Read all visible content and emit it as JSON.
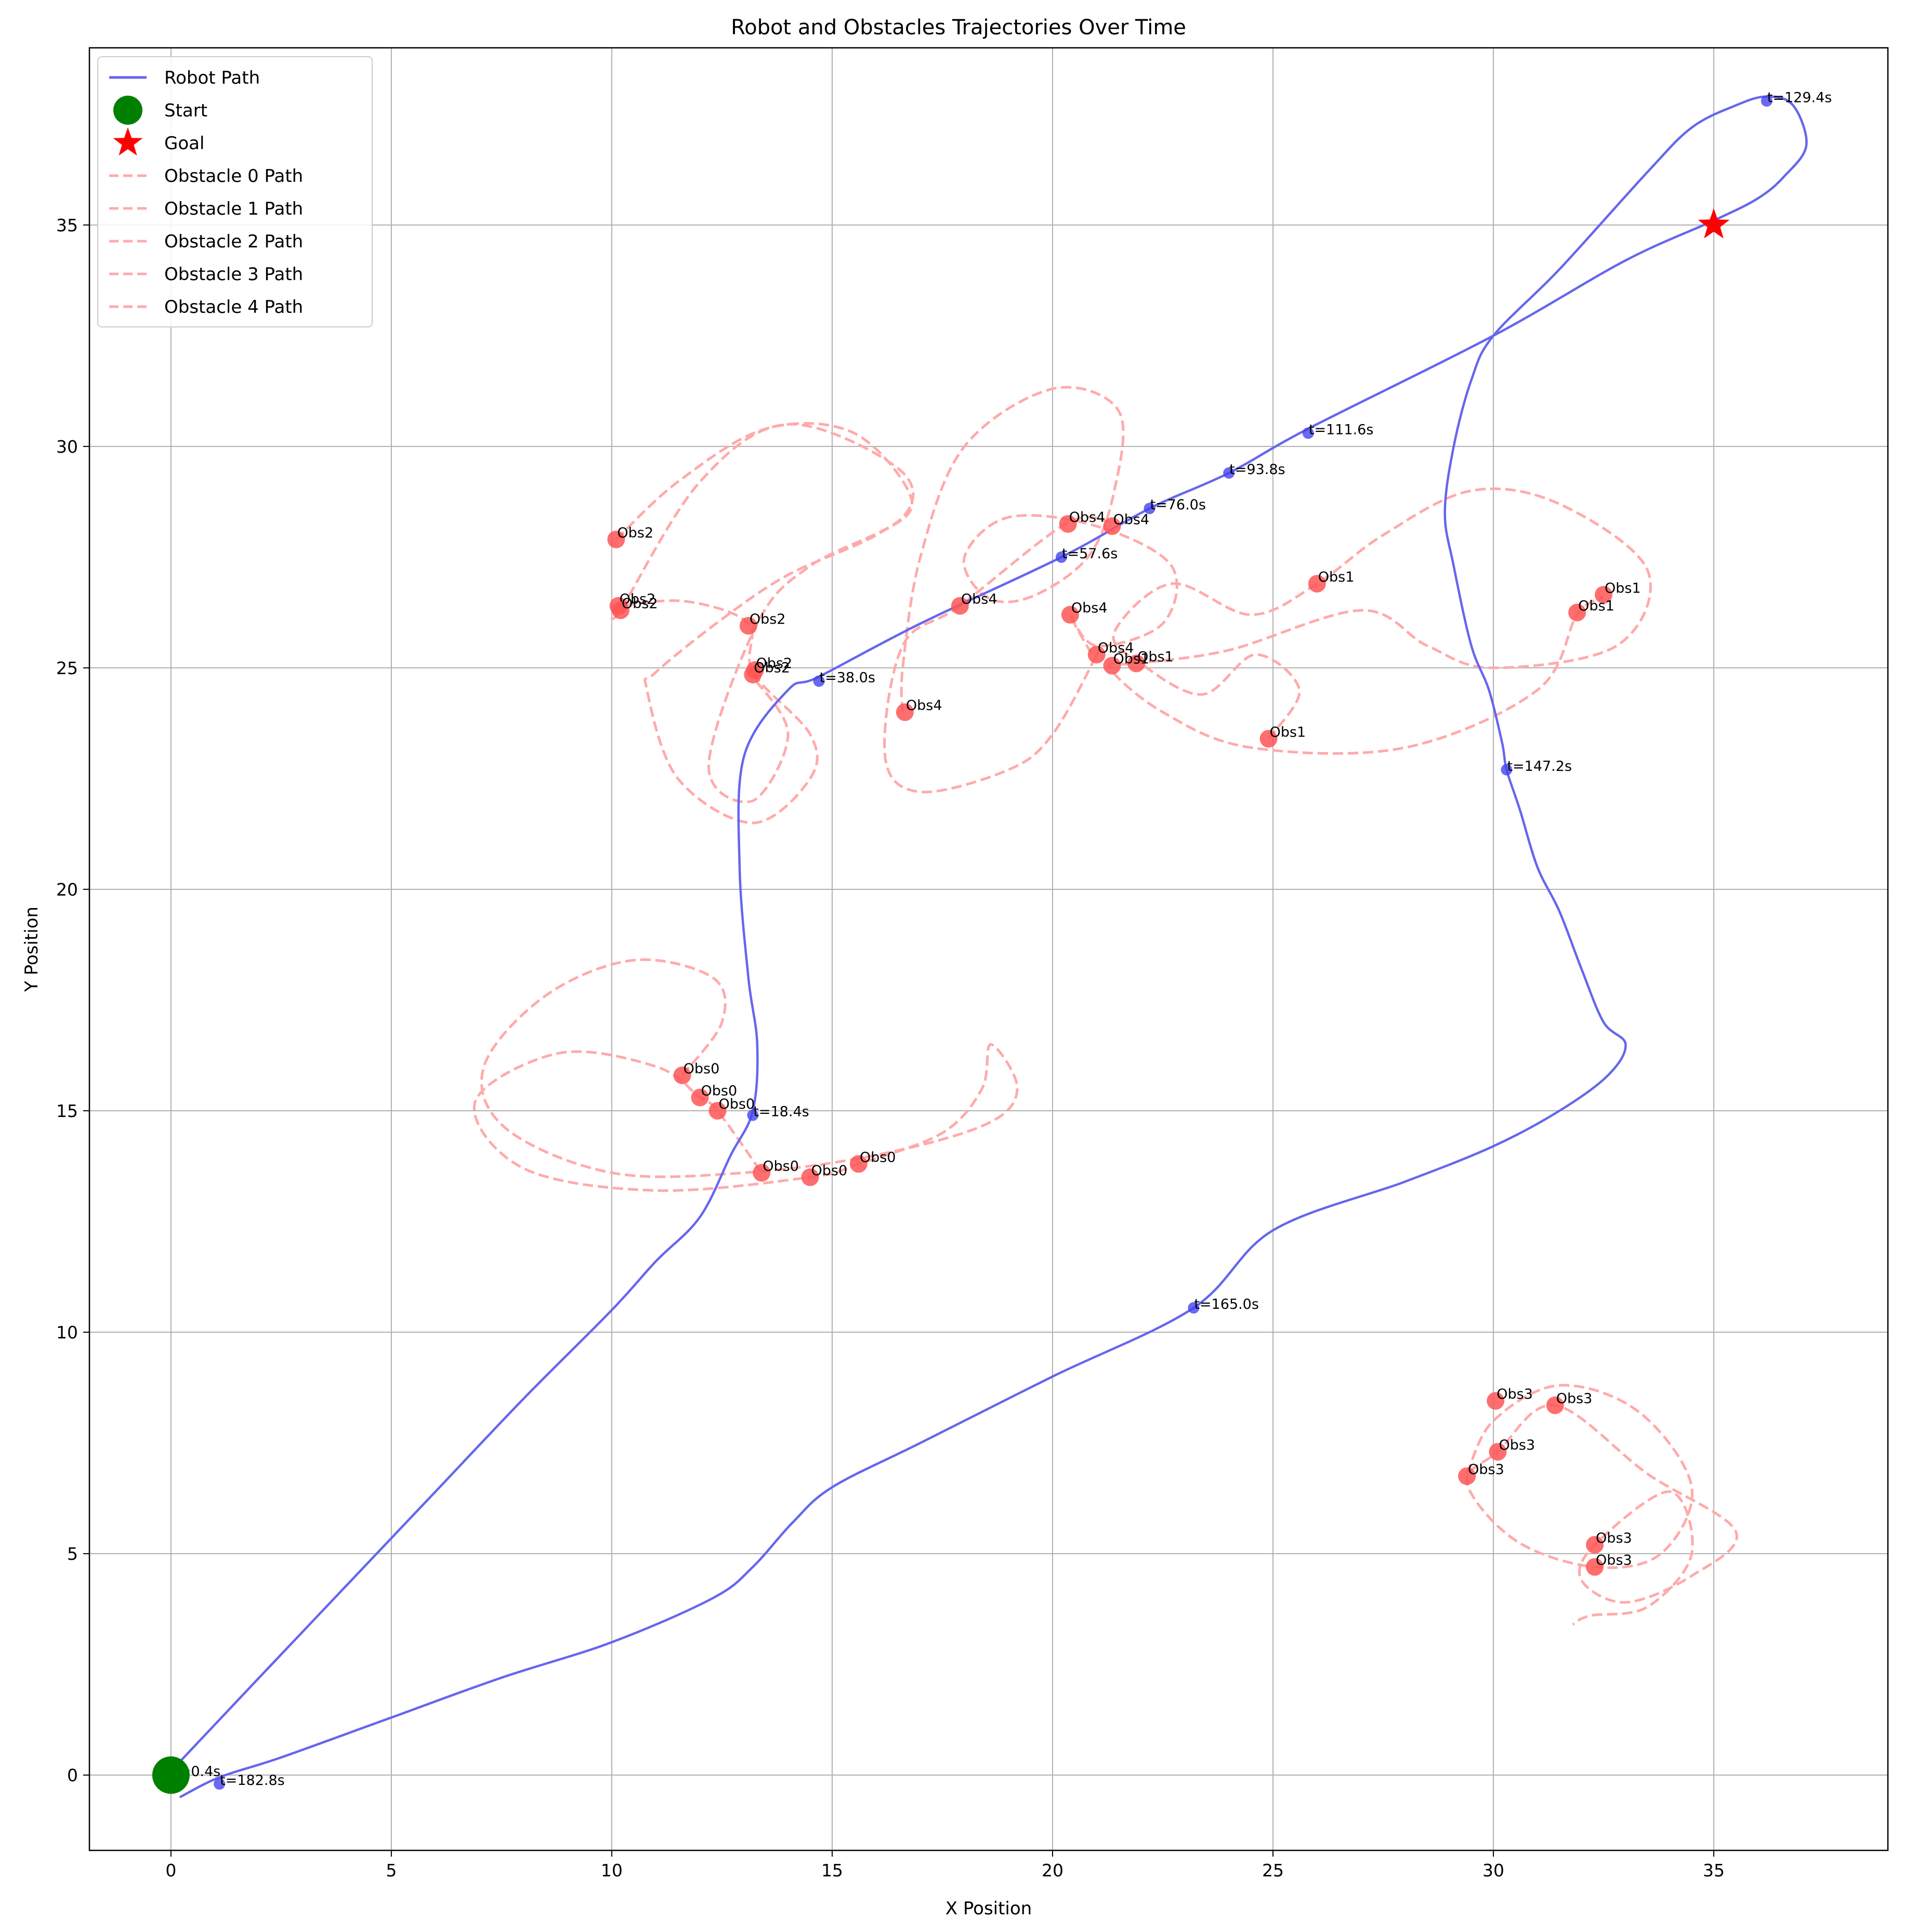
{
  "chart_data": {
    "type": "line",
    "title": "Robot and Obstacles Trajectories Over Time",
    "xlabel": "X Position",
    "ylabel": "Y Position",
    "xlim": [
      -1.85,
      38.95
    ],
    "ylim": [
      -1.7,
      39.0
    ],
    "xticks": [
      0,
      5,
      10,
      15,
      20,
      25,
      30,
      35
    ],
    "yticks": [
      0,
      5,
      10,
      15,
      20,
      25,
      30,
      35
    ],
    "grid": true,
    "legend_position": "top-left",
    "colors": {
      "robot": "#6666ee",
      "obstacle": "#ffaaaa",
      "obstacle_marker": "#ff5555",
      "start": "#008000",
      "goal": "#ff0000"
    },
    "legend": [
      {
        "label": "Robot Path",
        "kind": "robot-line"
      },
      {
        "label": "Start",
        "kind": "start-marker"
      },
      {
        "label": "Goal",
        "kind": "goal-marker"
      },
      {
        "label": "Obstacle 0 Path",
        "kind": "obstacle-line"
      },
      {
        "label": "Obstacle 1 Path",
        "kind": "obstacle-line"
      },
      {
        "label": "Obstacle 2 Path",
        "kind": "obstacle-line"
      },
      {
        "label": "Obstacle 3 Path",
        "kind": "obstacle-line"
      },
      {
        "label": "Obstacle 4 Path",
        "kind": "obstacle-line"
      }
    ],
    "start": [
      0,
      0
    ],
    "goal": [
      35,
      35
    ],
    "robot_path": [
      [
        0.2,
        0.3
      ],
      [
        2,
        2.2
      ],
      [
        4,
        4.3
      ],
      [
        6,
        6.4
      ],
      [
        8,
        8.5
      ],
      [
        10,
        10.5
      ],
      [
        11,
        11.6
      ],
      [
        12,
        12.6
      ],
      [
        12.7,
        14
      ],
      [
        13.2,
        15
      ],
      [
        13.3,
        16.5
      ],
      [
        13.1,
        18
      ],
      [
        12.9,
        20.5
      ],
      [
        13.0,
        23
      ],
      [
        14,
        24.5
      ],
      [
        14.7,
        24.8
      ],
      [
        17,
        26
      ],
      [
        20.2,
        27.5
      ],
      [
        22.2,
        28.6
      ],
      [
        24,
        29.4
      ],
      [
        25.8,
        30.4
      ],
      [
        30,
        32.5
      ],
      [
        33,
        34.2
      ],
      [
        35,
        35.1
      ],
      [
        36,
        35.6
      ],
      [
        36.6,
        36.1
      ],
      [
        37.1,
        36.8
      ],
      [
        36.8,
        37.7
      ],
      [
        36.2,
        37.9
      ],
      [
        35.5,
        37.7
      ],
      [
        34.5,
        37.2
      ],
      [
        33.5,
        36.2
      ],
      [
        31.5,
        34
      ],
      [
        30,
        32.5
      ],
      [
        29.5,
        31.5
      ],
      [
        29.1,
        30
      ],
      [
        28.9,
        28.5
      ],
      [
        29.1,
        27.3
      ],
      [
        29.5,
        25.5
      ],
      [
        29.9,
        24.5
      ],
      [
        30.2,
        23.3
      ],
      [
        30.3,
        22.7
      ],
      [
        30.6,
        21.8
      ],
      [
        31,
        20.5
      ],
      [
        31.5,
        19.5
      ],
      [
        32,
        18.2
      ],
      [
        32.5,
        17
      ],
      [
        33,
        16.5
      ],
      [
        32.6,
        15.8
      ],
      [
        31.5,
        15
      ],
      [
        30,
        14.2
      ],
      [
        28,
        13.4
      ],
      [
        25,
        12.3
      ],
      [
        23.2,
        10.55
      ],
      [
        20,
        9.0
      ],
      [
        17,
        7.5
      ],
      [
        15,
        6.5
      ],
      [
        14.1,
        5.7
      ],
      [
        13.2,
        4.7
      ],
      [
        12.3,
        4.0
      ],
      [
        10,
        3.0
      ],
      [
        7.5,
        2.2
      ],
      [
        5,
        1.3
      ],
      [
        2.5,
        0.4
      ],
      [
        1.1,
        -0.05
      ],
      [
        0.2,
        -0.5
      ]
    ],
    "time_markers": [
      {
        "x": 0.05,
        "y": 0.0,
        "label": "t=0.4s"
      },
      {
        "x": 13.2,
        "y": 14.9,
        "label": "t=18.4s"
      },
      {
        "x": 14.7,
        "y": 24.7,
        "label": "t=38.0s"
      },
      {
        "x": 20.2,
        "y": 27.5,
        "label": "t=57.6s"
      },
      {
        "x": 22.2,
        "y": 28.6,
        "label": "t=76.0s"
      },
      {
        "x": 24.0,
        "y": 29.4,
        "label": "t=93.8s"
      },
      {
        "x": 25.8,
        "y": 30.3,
        "label": "t=111.6s"
      },
      {
        "x": 36.2,
        "y": 37.8,
        "label": "t=129.4s"
      },
      {
        "x": 30.3,
        "y": 22.7,
        "label": "t=147.2s"
      },
      {
        "x": 23.2,
        "y": 10.55,
        "label": "t=165.0s"
      },
      {
        "x": 1.1,
        "y": -0.2,
        "label": "t=182.8s"
      }
    ],
    "obstacle_paths": [
      {
        "name": "Obstacle 0 Path",
        "points": [
          [
            11.6,
            15.8
          ],
          [
            12.5,
            17.0
          ],
          [
            12.3,
            18.0
          ],
          [
            10.5,
            18.4
          ],
          [
            8.5,
            17.6
          ],
          [
            7.1,
            16.0
          ],
          [
            7.6,
            14.6
          ],
          [
            10,
            13.6
          ],
          [
            13,
            13.6
          ],
          [
            16,
            14.0
          ],
          [
            18.5,
            14.7
          ],
          [
            19.2,
            15.5
          ],
          [
            18.6,
            16.5
          ],
          [
            18.4,
            15.5
          ],
          [
            17.5,
            14.5
          ],
          [
            15.6,
            13.8
          ],
          [
            14.5,
            13.5
          ],
          [
            11,
            13.2
          ],
          [
            8,
            13.7
          ],
          [
            6.9,
            15.2
          ],
          [
            8.8,
            16.3
          ],
          [
            11,
            16.0
          ],
          [
            12.0,
            15.3
          ],
          [
            12.4,
            15.0
          ],
          [
            13.4,
            13.6
          ]
        ]
      },
      {
        "name": "Obstacle 1 Path",
        "points": [
          [
            24.9,
            23.4
          ],
          [
            25.6,
            24.5
          ],
          [
            24.6,
            25.3
          ],
          [
            23.4,
            24.4
          ],
          [
            22,
            25.1
          ],
          [
            21.4,
            25.8
          ],
          [
            22.7,
            26.9
          ],
          [
            24.5,
            26.2
          ],
          [
            26,
            26.9
          ],
          [
            27.5,
            28
          ],
          [
            29.5,
            29
          ],
          [
            31.5,
            28.7
          ],
          [
            33.5,
            27.2
          ],
          [
            32.8,
            25.5
          ],
          [
            30,
            25
          ],
          [
            28.5,
            25.5
          ],
          [
            27,
            26.3
          ],
          [
            24,
            25.4
          ],
          [
            21.9,
            25.1
          ],
          [
            21.3,
            25.0
          ],
          [
            22.5,
            24
          ],
          [
            24.5,
            23.2
          ],
          [
            28,
            23.2
          ],
          [
            31,
            24.5
          ],
          [
            31.9,
            26.2
          ],
          [
            32.5,
            26.6
          ]
        ]
      },
      {
        "name": "Obstacle 2 Path",
        "points": [
          [
            10.1,
            27.9
          ],
          [
            11.5,
            29.2
          ],
          [
            13.5,
            30.4
          ],
          [
            15.5,
            30.3
          ],
          [
            16.8,
            28.8
          ],
          [
            16,
            28.0
          ],
          [
            14,
            27.1
          ],
          [
            12.5,
            26.1
          ],
          [
            11,
            24.9
          ],
          [
            10.8,
            24.5
          ],
          [
            11.5,
            22.5
          ],
          [
            13.2,
            21.5
          ],
          [
            14.5,
            22.5
          ],
          [
            14.5,
            23.5
          ],
          [
            13.2,
            24.9
          ],
          [
            13.1,
            26.0
          ],
          [
            11.7,
            26.5
          ],
          [
            10.2,
            26.4
          ],
          [
            10.2,
            26.3
          ],
          [
            12,
            29.2
          ],
          [
            14,
            30.5
          ],
          [
            16.5,
            29.5
          ],
          [
            16.6,
            28.4
          ],
          [
            14.5,
            27.3
          ],
          [
            13.3,
            26.0
          ],
          [
            12.2,
            22.8
          ],
          [
            13.2,
            22.0
          ],
          [
            14,
            23.5
          ],
          [
            13.2,
            24.8
          ]
        ]
      },
      {
        "name": "Obstacle 3 Path",
        "points": [
          [
            29.4,
            6.8
          ],
          [
            30.0,
            8.0
          ],
          [
            31.5,
            8.8
          ],
          [
            33.3,
            8.2
          ],
          [
            34.5,
            6.5
          ],
          [
            33.8,
            5.0
          ],
          [
            32.3,
            4.7
          ],
          [
            30.5,
            5.3
          ],
          [
            29.4,
            6.6
          ],
          [
            30.1,
            7.3
          ],
          [
            31.4,
            8.35
          ],
          [
            33.5,
            6.8
          ],
          [
            35.5,
            5.5
          ],
          [
            34.5,
            4.5
          ],
          [
            33,
            3.9
          ],
          [
            32,
            4.4
          ],
          [
            32.3,
            5.2
          ],
          [
            34,
            6.4
          ],
          [
            34.5,
            5.0
          ],
          [
            33.5,
            3.8
          ],
          [
            32.2,
            3.6
          ],
          [
            31.8,
            3.4
          ]
        ]
      },
      {
        "name": "Obstacle 4 Path",
        "points": [
          [
            16.6,
            24.0
          ],
          [
            16.6,
            25.0
          ],
          [
            17.0,
            27.5
          ],
          [
            18.0,
            30.0
          ],
          [
            20,
            31.3
          ],
          [
            21.5,
            30.8
          ],
          [
            21.4,
            29.0
          ],
          [
            20.8,
            27.5
          ],
          [
            19.5,
            26.6
          ],
          [
            18.5,
            26.6
          ],
          [
            18.0,
            27.5
          ],
          [
            19.0,
            28.4
          ],
          [
            21.0,
            28.2
          ],
          [
            22.7,
            27.3
          ],
          [
            22.5,
            26.0
          ],
          [
            21.0,
            25.5
          ],
          [
            20.4,
            26.2
          ],
          [
            20.9,
            25.3
          ],
          [
            21.0,
            25.3
          ],
          [
            20.0,
            23.5
          ],
          [
            19.0,
            22.7
          ],
          [
            17.0,
            22.2
          ],
          [
            16.2,
            23.0
          ],
          [
            16.6,
            25.5
          ],
          [
            17.9,
            26.4
          ],
          [
            20.3,
            28.25
          ],
          [
            21.3,
            28.3
          ]
        ]
      }
    ],
    "obstacle_markers": [
      {
        "x": 11.6,
        "y": 15.8,
        "label": "Obs0"
      },
      {
        "x": 12.0,
        "y": 15.3,
        "label": "Obs0"
      },
      {
        "x": 12.4,
        "y": 15.0,
        "label": "Obs0"
      },
      {
        "x": 13.4,
        "y": 13.6,
        "label": "Obs0"
      },
      {
        "x": 14.5,
        "y": 13.5,
        "label": "Obs0"
      },
      {
        "x": 15.6,
        "y": 13.8,
        "label": "Obs0"
      },
      {
        "x": 26.0,
        "y": 26.9,
        "label": "Obs1"
      },
      {
        "x": 32.5,
        "y": 26.65,
        "label": "Obs1"
      },
      {
        "x": 31.9,
        "y": 26.25,
        "label": "Obs1"
      },
      {
        "x": 21.9,
        "y": 25.1,
        "label": "Obs1"
      },
      {
        "x": 21.35,
        "y": 25.05,
        "label": "Obs1"
      },
      {
        "x": 24.9,
        "y": 23.4,
        "label": "Obs1"
      },
      {
        "x": 10.1,
        "y": 27.9,
        "label": "Obs2"
      },
      {
        "x": 10.15,
        "y": 26.4,
        "label": "Obs2"
      },
      {
        "x": 10.2,
        "y": 26.3,
        "label": "Obs2"
      },
      {
        "x": 13.1,
        "y": 25.95,
        "label": "Obs2"
      },
      {
        "x": 13.25,
        "y": 24.95,
        "label": "Obs2"
      },
      {
        "x": 13.2,
        "y": 24.85,
        "label": "Obs2"
      },
      {
        "x": 30.05,
        "y": 8.45,
        "label": "Obs3"
      },
      {
        "x": 31.4,
        "y": 8.35,
        "label": "Obs3"
      },
      {
        "x": 30.1,
        "y": 7.3,
        "label": "Obs3"
      },
      {
        "x": 29.4,
        "y": 6.75,
        "label": "Obs3"
      },
      {
        "x": 32.3,
        "y": 5.2,
        "label": "Obs3"
      },
      {
        "x": 32.3,
        "y": 4.7,
        "label": "Obs3"
      },
      {
        "x": 20.35,
        "y": 28.25,
        "label": "Obs4"
      },
      {
        "x": 21.35,
        "y": 28.2,
        "label": "Obs4"
      },
      {
        "x": 17.9,
        "y": 26.4,
        "label": "Obs4"
      },
      {
        "x": 20.4,
        "y": 26.2,
        "label": "Obs4"
      },
      {
        "x": 21.0,
        "y": 25.3,
        "label": "Obs4"
      },
      {
        "x": 16.65,
        "y": 24.0,
        "label": "Obs4"
      }
    ]
  }
}
